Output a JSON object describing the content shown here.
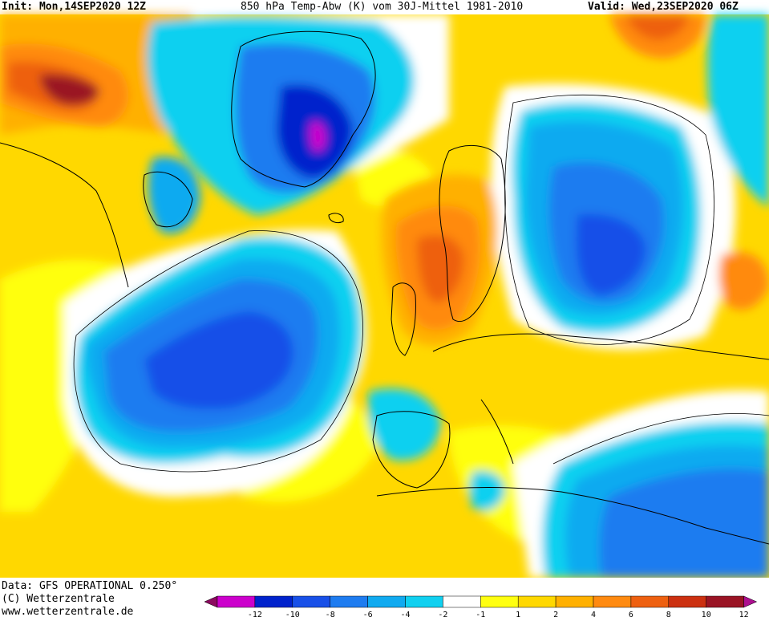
{
  "header": {
    "init": "Init: Mon,14SEP2020 12Z",
    "title": "850 hPa Temp-Abw (K) vom 30J-Mittel 1981-2010",
    "valid": "Valid: Wed,23SEP2020 06Z"
  },
  "map": {
    "variable": "850 hPa temperature anomaly",
    "unit": "K",
    "region": "North Atlantic / Europe / North Africa",
    "coastline_color": "#000000"
  },
  "footer": {
    "data_line": "Data: GFS OPERATIONAL 0.250°",
    "copyright": "(C) Wetterzentrale",
    "url": "www.wetterzentrale.de"
  },
  "legend": {
    "ticks": [
      "-12",
      "-10",
      "-8",
      "-6",
      "-4",
      "-2",
      "-1",
      "1",
      "2",
      "4",
      "6",
      "8",
      "10",
      "12"
    ],
    "colors": [
      "#8b0a5f",
      "#cc00cc",
      "#0022cc",
      "#1850e8",
      "#1e7cf0",
      "#10aaf0",
      "#10d0f0",
      "#ffffff",
      "#ffff10",
      "#ffd800",
      "#ffb000",
      "#ff8a10",
      "#ee6010",
      "#cc3010",
      "#9a1424",
      "#ad1090"
    ]
  }
}
